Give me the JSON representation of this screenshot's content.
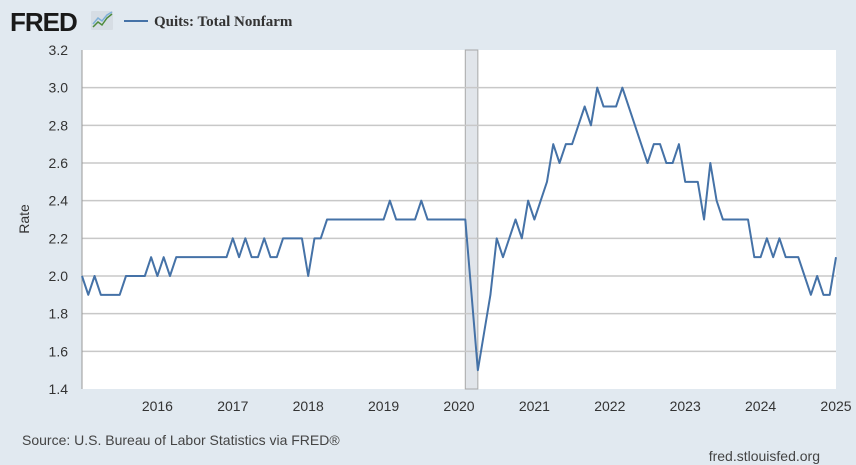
{
  "header": {
    "logo_text": "FRED"
  },
  "chart_data": {
    "type": "line",
    "title": "",
    "xlabel": "",
    "ylabel": "Rate",
    "ylim": [
      1.4,
      3.2
    ],
    "xlim": [
      "2015-01",
      "2025-01"
    ],
    "grid": true,
    "legend_placement": "top-left",
    "y_ticks": [
      "1.4",
      "1.6",
      "1.8",
      "2.0",
      "2.2",
      "2.4",
      "2.6",
      "2.8",
      "3.0",
      "3.2"
    ],
    "x_ticks": [
      "2016",
      "2017",
      "2018",
      "2019",
      "2020",
      "2021",
      "2022",
      "2023",
      "2024",
      "2025"
    ],
    "recession_shading": [
      "2020-02",
      "2020-04"
    ],
    "line_color": "#4572a7",
    "series": [
      {
        "name": "Quits: Total Nonfarm",
        "x": [
          "2015-01",
          "2015-02",
          "2015-03",
          "2015-04",
          "2015-05",
          "2015-06",
          "2015-07",
          "2015-08",
          "2015-09",
          "2015-10",
          "2015-11",
          "2015-12",
          "2016-01",
          "2016-02",
          "2016-03",
          "2016-04",
          "2016-05",
          "2016-06",
          "2016-07",
          "2016-08",
          "2016-09",
          "2016-10",
          "2016-11",
          "2016-12",
          "2017-01",
          "2017-02",
          "2017-03",
          "2017-04",
          "2017-05",
          "2017-06",
          "2017-07",
          "2017-08",
          "2017-09",
          "2017-10",
          "2017-11",
          "2017-12",
          "2018-01",
          "2018-02",
          "2018-03",
          "2018-04",
          "2018-05",
          "2018-06",
          "2018-07",
          "2018-08",
          "2018-09",
          "2018-10",
          "2018-11",
          "2018-12",
          "2019-01",
          "2019-02",
          "2019-03",
          "2019-04",
          "2019-05",
          "2019-06",
          "2019-07",
          "2019-08",
          "2019-09",
          "2019-10",
          "2019-11",
          "2019-12",
          "2020-01",
          "2020-02",
          "2020-03",
          "2020-04",
          "2020-05",
          "2020-06",
          "2020-07",
          "2020-08",
          "2020-09",
          "2020-10",
          "2020-11",
          "2020-12",
          "2021-01",
          "2021-02",
          "2021-03",
          "2021-04",
          "2021-05",
          "2021-06",
          "2021-07",
          "2021-08",
          "2021-09",
          "2021-10",
          "2021-11",
          "2021-12",
          "2022-01",
          "2022-02",
          "2022-03",
          "2022-04",
          "2022-05",
          "2022-06",
          "2022-07",
          "2022-08",
          "2022-09",
          "2022-10",
          "2022-11",
          "2022-12",
          "2023-01",
          "2023-02",
          "2023-03",
          "2023-04",
          "2023-05",
          "2023-06",
          "2023-07",
          "2023-08",
          "2023-09",
          "2023-10",
          "2023-11",
          "2023-12",
          "2024-01",
          "2024-02",
          "2024-03",
          "2024-04",
          "2024-05",
          "2024-06",
          "2024-07",
          "2024-08",
          "2024-09",
          "2024-10",
          "2024-11",
          "2024-12",
          "2025-01"
        ],
        "values": [
          2.0,
          1.9,
          2.0,
          1.9,
          1.9,
          1.9,
          1.9,
          2.0,
          2.0,
          2.0,
          2.0,
          2.1,
          2.0,
          2.1,
          2.0,
          2.1,
          2.1,
          2.1,
          2.1,
          2.1,
          2.1,
          2.1,
          2.1,
          2.1,
          2.2,
          2.1,
          2.2,
          2.1,
          2.1,
          2.2,
          2.1,
          2.1,
          2.2,
          2.2,
          2.2,
          2.2,
          2.0,
          2.2,
          2.2,
          2.3,
          2.3,
          2.3,
          2.3,
          2.3,
          2.3,
          2.3,
          2.3,
          2.3,
          2.3,
          2.4,
          2.3,
          2.3,
          2.3,
          2.3,
          2.4,
          2.3,
          2.3,
          2.3,
          2.3,
          2.3,
          2.3,
          2.3,
          1.9,
          1.5,
          1.7,
          1.9,
          2.2,
          2.1,
          2.2,
          2.3,
          2.2,
          2.4,
          2.3,
          2.4,
          2.5,
          2.7,
          2.6,
          2.7,
          2.7,
          2.8,
          2.9,
          2.8,
          3.0,
          2.9,
          2.9,
          2.9,
          3.0,
          2.9,
          2.8,
          2.7,
          2.6,
          2.7,
          2.7,
          2.6,
          2.6,
          2.7,
          2.5,
          2.5,
          2.5,
          2.3,
          2.6,
          2.4,
          2.3,
          2.3,
          2.3,
          2.3,
          2.3,
          2.1,
          2.1,
          2.2,
          2.1,
          2.2,
          2.1,
          2.1,
          2.1,
          2.0,
          1.9,
          2.0,
          1.9,
          1.9,
          2.1
        ]
      }
    ]
  },
  "footer": {
    "source": "Source: U.S. Bureau of Labor Statistics via FRED®",
    "site": "fred.stlouisfed.org"
  }
}
